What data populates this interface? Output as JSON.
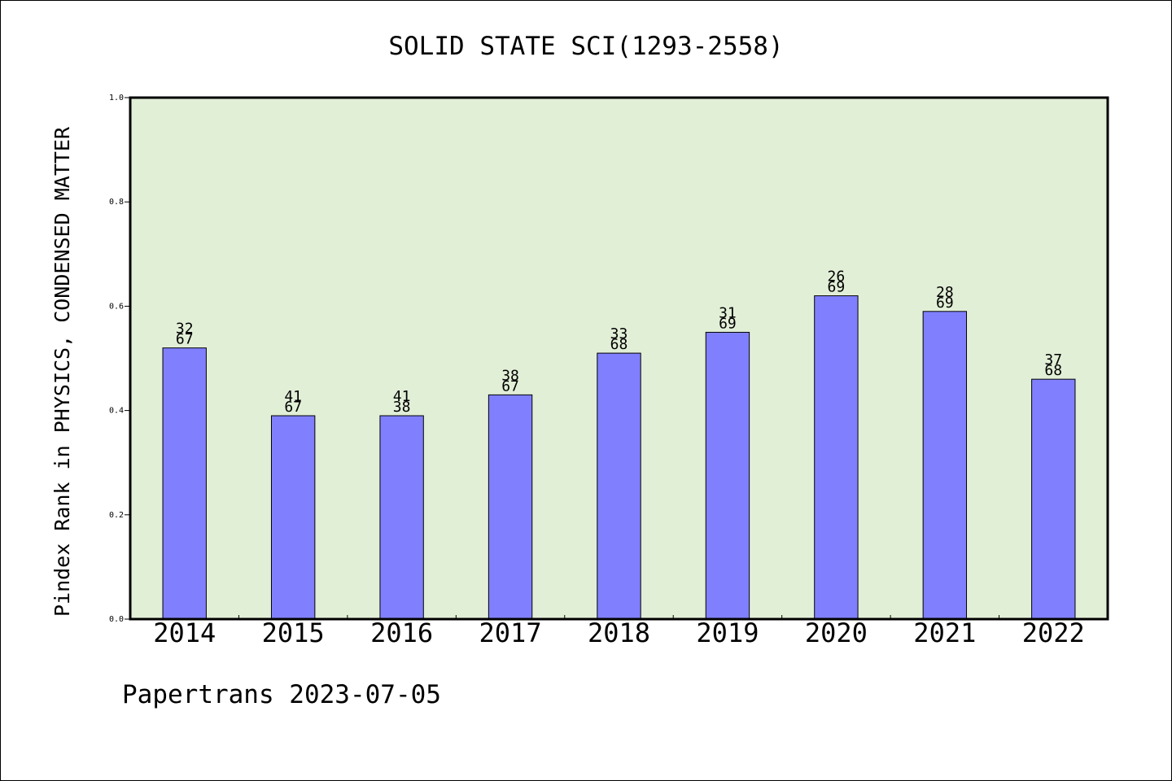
{
  "chart_data": {
    "type": "bar",
    "title": "SOLID STATE SCI(1293-2558)",
    "ylabel": "Pindex Rank in PHYSICS, CONDENSED MATTER",
    "xlabel": "",
    "categories": [
      "2014",
      "2015",
      "2016",
      "2017",
      "2018",
      "2019",
      "2020",
      "2021",
      "2022"
    ],
    "values": [
      0.52,
      0.39,
      0.39,
      0.43,
      0.51,
      0.55,
      0.62,
      0.59,
      0.46
    ],
    "label_top": [
      "32",
      "41",
      "41",
      "38",
      "33",
      "31",
      "26",
      "28",
      "37"
    ],
    "label_bottom": [
      "67",
      "67",
      "38",
      "67",
      "68",
      "69",
      "69",
      "69",
      "68"
    ],
    "ylim": [
      0,
      1.0
    ],
    "yticks": [
      "0.0",
      "0.2",
      "0.4",
      "0.6",
      "0.8",
      "1.0"
    ],
    "grid": false,
    "legend": "none",
    "colors": {
      "plot_background": "#e2efd7",
      "bar_fill": "#8080ff",
      "bar_stroke": "#000000",
      "axes": "#000000"
    },
    "footer": "Papertrans 2023-07-05"
  }
}
